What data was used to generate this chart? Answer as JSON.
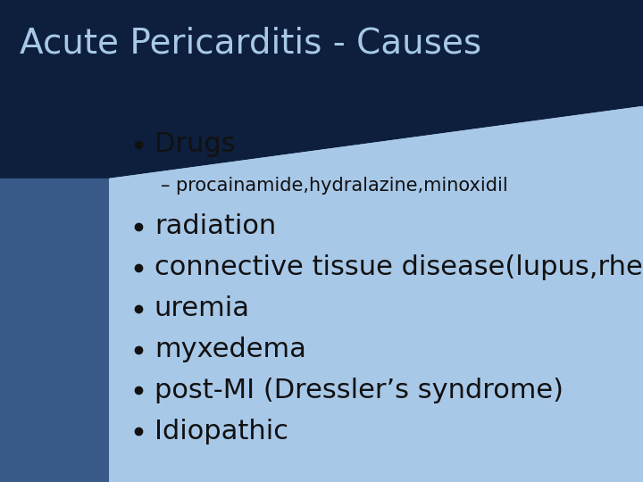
{
  "title": "Acute Pericarditis - Causes",
  "title_color": "#A8C8E8",
  "title_bg_color": "#0D1F3C",
  "main_bg_color": "#A8C8E8",
  "left_panel_color": "#3A5A8A",
  "dark_panel_color": "#0D1F3C",
  "bullet_color": "#111111",
  "text_color": "#111111",
  "sub_text_color": "#111111",
  "bullet_items": [
    {
      "bullet": true,
      "text": "Drugs",
      "size": 22
    },
    {
      "bullet": false,
      "text": "– procainamide,hydralazine,minoxidil",
      "size": 15
    },
    {
      "bullet": true,
      "text": "radiation",
      "size": 22
    },
    {
      "bullet": true,
      "text": "connective tissue disease(lupus,rheum)",
      "size": 22
    },
    {
      "bullet": true,
      "text": "uremia",
      "size": 22
    },
    {
      "bullet": true,
      "text": "myxedema",
      "size": 22
    },
    {
      "bullet": true,
      "text": "post-MI (Dressler’s syndrome)",
      "size": 22
    },
    {
      "bullet": true,
      "text": "Idiopathic",
      "size": 22
    }
  ],
  "title_fontsize": 28,
  "fig_width": 7.2,
  "fig_height": 5.4,
  "dpi": 100
}
